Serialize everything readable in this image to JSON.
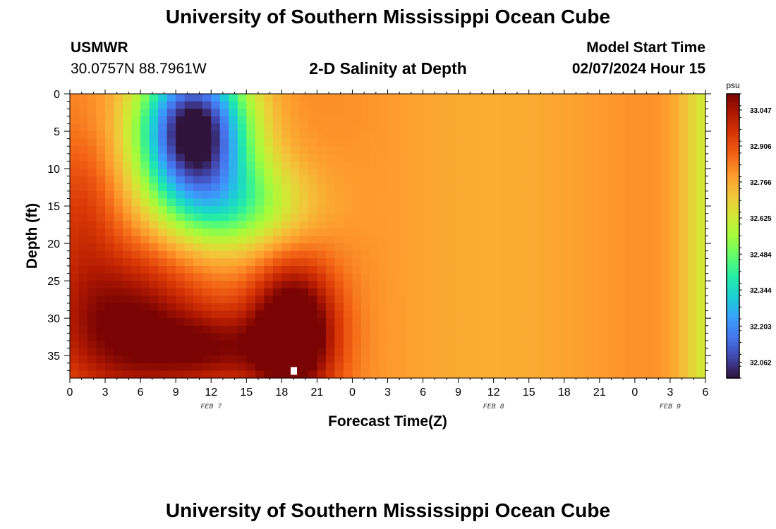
{
  "header": {
    "title": "University of Southern Mississippi Ocean Cube",
    "station": "USMWR",
    "coords": "30.0757N  88.7961W",
    "subtitle": "2-D Salinity at Depth",
    "model_label": "Model Start Time",
    "model_time": "02/07/2024 Hour 15"
  },
  "footer": {
    "title": "University of Southern Mississippi Ocean Cube"
  },
  "chart_data": {
    "type": "heatmap",
    "title": "2-D Salinity at Depth",
    "xlabel": "Forecast Time(Z)",
    "ylabel": "Depth (ft)",
    "x_tick_labels": [
      "0",
      "3",
      "6",
      "9",
      "12",
      "15",
      "18",
      "21",
      "0",
      "3",
      "6",
      "9",
      "12",
      "15",
      "18",
      "21",
      "0",
      "3",
      "6"
    ],
    "x_range_hours": [
      0,
      54
    ],
    "date_labels": [
      {
        "text": "FEB 7",
        "hour": 12
      },
      {
        "text": "FEB 8",
        "hour": 36
      },
      {
        "text": "FEB 9",
        "hour": 51
      }
    ],
    "y_tick_labels": [
      "0",
      "5",
      "10",
      "15",
      "20",
      "25",
      "30",
      "35"
    ],
    "y_range_ft": [
      0,
      38
    ],
    "colorbar": {
      "unit": "psu",
      "min": 32.0,
      "max": 33.11,
      "tick_labels": [
        "33.047",
        "32.906",
        "32.766",
        "32.625",
        "32.484",
        "32.344",
        "32.203",
        "32.062"
      ],
      "tick_values": [
        33.047,
        32.906,
        32.766,
        32.625,
        32.484,
        32.344,
        32.203,
        32.062
      ]
    },
    "marker": {
      "hour": 19,
      "depth_ft": 37,
      "color": "#ffffff"
    },
    "colors": {
      "scale": [
        "#30123b",
        "#4145ab",
        "#4675ed",
        "#39a2fc",
        "#1bcfd4",
        "#24eca6",
        "#61fc6c",
        "#a4fc3b",
        "#d1e834",
        "#f3c63a",
        "#fe9b2d",
        "#f36315",
        "#d93806",
        "#b11901",
        "#7a0403"
      ]
    }
  }
}
